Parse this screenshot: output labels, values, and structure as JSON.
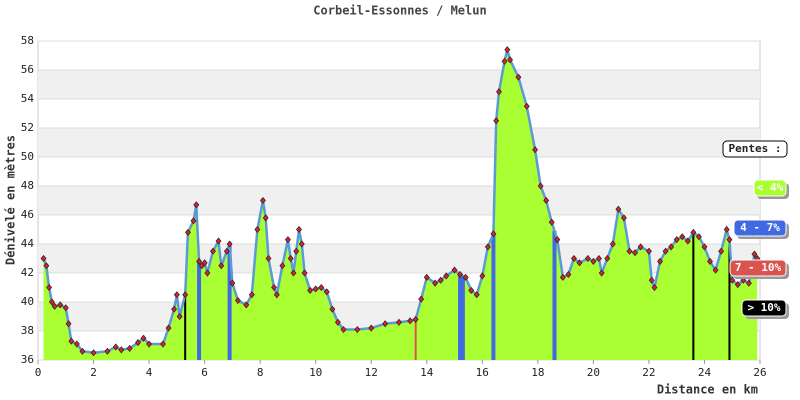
{
  "chart_data": {
    "type": "area",
    "title": "Corbeil-Essonnes / Melun",
    "x_label": "Distance en km",
    "y_label": "Dénivelé en mètres",
    "xlim": [
      0,
      26
    ],
    "xticks": [
      0,
      2,
      4,
      6,
      8,
      10,
      12,
      14,
      16,
      18,
      20,
      22,
      24,
      26
    ],
    "ylim": [
      36,
      58
    ],
    "yticks": [
      36,
      38,
      40,
      42,
      44,
      46,
      48,
      50,
      52,
      54,
      56,
      58
    ],
    "grid": true,
    "color": "#aaff33",
    "line_color": "#5b9bd5",
    "x": [
      0.2,
      0.3,
      0.4,
      0.5,
      0.6,
      0.8,
      1.0,
      1.1,
      1.2,
      1.4,
      1.6,
      2.0,
      2.5,
      2.8,
      3.0,
      3.3,
      3.6,
      3.8,
      4.0,
      4.5,
      4.7,
      4.9,
      5.0,
      5.1,
      5.3,
      5.4,
      5.6,
      5.7,
      5.8,
      5.9,
      6.0,
      6.1,
      6.3,
      6.5,
      6.6,
      6.8,
      6.9,
      7.0,
      7.2,
      7.5,
      7.7,
      7.9,
      8.1,
      8.2,
      8.3,
      8.5,
      8.6,
      8.8,
      9.0,
      9.1,
      9.2,
      9.3,
      9.4,
      9.5,
      9.6,
      9.8,
      10.0,
      10.2,
      10.4,
      10.6,
      10.8,
      11.0,
      11.5,
      12.0,
      12.5,
      13.0,
      13.4,
      13.6,
      13.8,
      14.0,
      14.3,
      14.5,
      14.7,
      15.0,
      15.2,
      15.4,
      15.6,
      15.8,
      16.0,
      16.2,
      16.4,
      16.5,
      16.6,
      16.8,
      16.9,
      17.0,
      17.3,
      17.6,
      17.9,
      18.1,
      18.3,
      18.5,
      18.7,
      18.9,
      19.1,
      19.3,
      19.5,
      19.8,
      20.0,
      20.2,
      20.3,
      20.5,
      20.7,
      20.9,
      21.1,
      21.3,
      21.5,
      21.7,
      22.0,
      22.1,
      22.2,
      22.4,
      22.6,
      22.8,
      23.0,
      23.2,
      23.4,
      23.6,
      23.8,
      24.0,
      24.2,
      24.4,
      24.6,
      24.8,
      24.9,
      25.0,
      25.2,
      25.4,
      25.6,
      25.8,
      25.9
    ],
    "values": [
      43,
      42.5,
      41,
      40,
      39.7,
      39.8,
      39.6,
      38.5,
      37.3,
      37.1,
      36.6,
      36.5,
      36.6,
      36.9,
      36.7,
      36.8,
      37.2,
      37.5,
      37.1,
      37.1,
      38.2,
      39.5,
      40.5,
      39,
      40.5,
      44.8,
      45.6,
      46.7,
      42.8,
      42.5,
      42.7,
      42,
      43.5,
      44.2,
      42.5,
      43.5,
      44,
      41.3,
      40.1,
      39.8,
      40.5,
      45,
      47,
      45.8,
      43,
      41,
      40.5,
      42.5,
      44.3,
      43,
      42,
      43.5,
      45,
      44,
      42,
      40.8,
      40.9,
      41,
      40.7,
      39.5,
      38.6,
      38.1,
      38.1,
      38.2,
      38.5,
      38.6,
      38.7,
      38.8,
      40.2,
      41.7,
      41.3,
      41.5,
      41.8,
      42.2,
      41.9,
      41.7,
      40.8,
      40.5,
      41.8,
      43.8,
      44.7,
      52.5,
      54.5,
      56.6,
      57.4,
      56.7,
      55.5,
      53.5,
      50.5,
      48,
      47,
      45.5,
      44.3,
      41.7,
      41.9,
      43,
      42.7,
      43,
      42.8,
      43,
      42,
      43,
      44,
      46.4,
      45.8,
      43.5,
      43.4,
      43.8,
      43.5,
      41.5,
      41,
      42.8,
      43.5,
      43.8,
      44.3,
      44.5,
      44.2,
      44.8,
      44.5,
      43.8,
      42.8,
      42.2,
      43.5,
      45,
      44.3,
      41.5,
      41.2,
      41.5,
      41.3,
      43.3,
      43
    ],
    "highlights": [
      {
        "x": 5.3,
        "color": "#000000"
      },
      {
        "x": 5.8,
        "color": "#4169e1"
      },
      {
        "x": 6.9,
        "color": "#4169e1"
      },
      {
        "x": 13.6,
        "color": "#e05050"
      },
      {
        "x": 15.2,
        "color": "#4169e1"
      },
      {
        "x": 15.3,
        "color": "#4169e1"
      },
      {
        "x": 16.4,
        "color": "#4169e1"
      },
      {
        "x": 18.6,
        "color": "#4169e1"
      },
      {
        "x": 23.6,
        "color": "#000000"
      },
      {
        "x": 24.9,
        "color": "#000000"
      }
    ],
    "legend": {
      "title": "Pentes :",
      "items": [
        {
          "name": "< 4%",
          "color": "#aaff33"
        },
        {
          "name": "4 - 7%",
          "color": "#4169e1"
        },
        {
          "name": "7 - 10%",
          "color": "#d9534f"
        },
        {
          "name": "> 10%",
          "color": "#000000"
        }
      ]
    }
  }
}
